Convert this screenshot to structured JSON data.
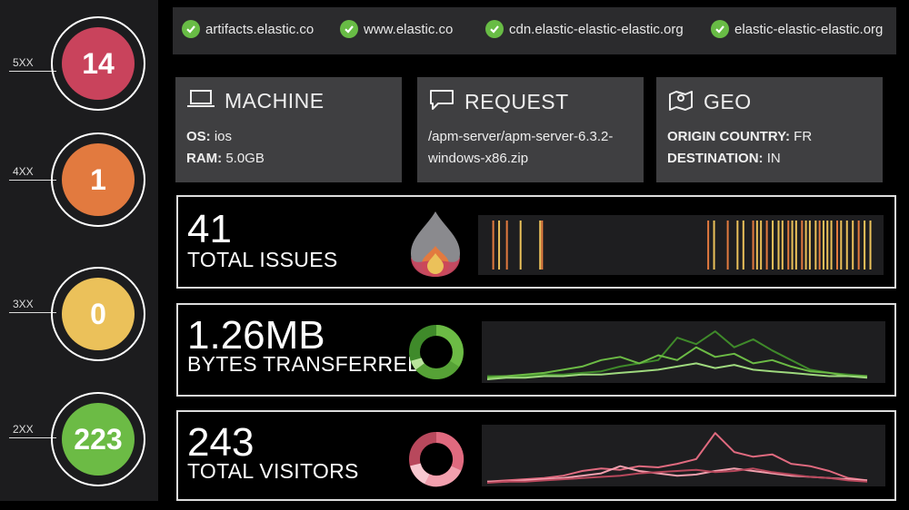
{
  "status_codes": [
    {
      "label": "5XX",
      "count": "14",
      "color": "#c9435c"
    },
    {
      "label": "4XX",
      "count": "1",
      "color": "#e27a3f"
    },
    {
      "label": "3XX",
      "count": "0",
      "color": "#ebc15a"
    },
    {
      "label": "2XX",
      "count": "223",
      "color": "#6cbb45"
    }
  ],
  "hosts": [
    {
      "name": "artifacts.elastic.co",
      "icon": "check-circle-icon"
    },
    {
      "name": "www.elastic.co",
      "icon": "check-circle-icon"
    },
    {
      "name": "cdn.elastic-elastic-elastic.org",
      "icon": "check-circle-icon"
    },
    {
      "name": "elastic-elastic-elastic.org",
      "icon": "check-circle-icon"
    }
  ],
  "machine": {
    "title": "MACHINE",
    "icon": "laptop-icon",
    "os_key": "OS:",
    "os_value": "ios",
    "ram_key": "RAM:",
    "ram_value": "5.0GB"
  },
  "request": {
    "title": "REQUEST",
    "icon": "speech-bubble-icon",
    "line1": "/apm-server/apm-server-6.3.2-",
    "line2": "windows-x86.zip"
  },
  "geo": {
    "title": "GEO",
    "icon": "map-pin-icon",
    "origin_key": "ORIGIN COUNTRY:",
    "origin_value": "FR",
    "destination_key": "DESTINATION:",
    "destination_value": "IN"
  },
  "issues": {
    "value": "41",
    "label": "TOTAL ISSUES",
    "icon": "flame-icon"
  },
  "bytes": {
    "value": "1.26MB",
    "label": "BYTES TRANSFERRED",
    "icon": "donut-icon",
    "color": "#6cbb45"
  },
  "visitors": {
    "value": "243",
    "label": "TOTAL VISITORS",
    "icon": "donut-icon",
    "color": "#e06a7f"
  },
  "chart_data": [
    {
      "type": "bar",
      "name": "issues-events",
      "events": [
        {
          "t": 0.02,
          "c": "#e27a3f"
        },
        {
          "t": 0.035,
          "c": "#ebc15a"
        },
        {
          "t": 0.055,
          "c": "#e27a3f"
        },
        {
          "t": 0.09,
          "c": "#ebc15a"
        },
        {
          "t": 0.14,
          "c": "#ebc15a"
        },
        {
          "t": 0.145,
          "c": "#e27a3f"
        },
        {
          "t": 0.57,
          "c": "#e27a3f"
        },
        {
          "t": 0.585,
          "c": "#ebc15a"
        },
        {
          "t": 0.62,
          "c": "#e27a3f"
        },
        {
          "t": 0.645,
          "c": "#ebc15a"
        },
        {
          "t": 0.66,
          "c": "#ebc15a"
        },
        {
          "t": 0.685,
          "c": "#e27a3f"
        },
        {
          "t": 0.695,
          "c": "#ebc15a"
        },
        {
          "t": 0.705,
          "c": "#ebc15a"
        },
        {
          "t": 0.72,
          "c": "#e27a3f"
        },
        {
          "t": 0.735,
          "c": "#ebc15a"
        },
        {
          "t": 0.75,
          "c": "#ebc15a"
        },
        {
          "t": 0.76,
          "c": "#ebc15a"
        },
        {
          "t": 0.775,
          "c": "#e27a3f"
        },
        {
          "t": 0.785,
          "c": "#ebc15a"
        },
        {
          "t": 0.795,
          "c": "#ebc15a"
        },
        {
          "t": 0.81,
          "c": "#e27a3f"
        },
        {
          "t": 0.82,
          "c": "#ebc15a"
        },
        {
          "t": 0.83,
          "c": "#ebc15a"
        },
        {
          "t": 0.845,
          "c": "#ebc15a"
        },
        {
          "t": 0.855,
          "c": "#e27a3f"
        },
        {
          "t": 0.865,
          "c": "#ebc15a"
        },
        {
          "t": 0.875,
          "c": "#ebc15a"
        },
        {
          "t": 0.885,
          "c": "#ebc15a"
        },
        {
          "t": 0.9,
          "c": "#e27a3f"
        },
        {
          "t": 0.91,
          "c": "#ebc15a"
        },
        {
          "t": 0.925,
          "c": "#ebc15a"
        },
        {
          "t": 0.94,
          "c": "#ebc15a"
        },
        {
          "t": 0.955,
          "c": "#e27a3f"
        },
        {
          "t": 0.97,
          "c": "#ebc15a"
        },
        {
          "t": 0.985,
          "c": "#ebc15a"
        }
      ]
    },
    {
      "type": "line",
      "name": "bytes-transferred",
      "x": [
        0,
        1,
        2,
        3,
        4,
        5,
        6,
        7,
        8,
        9,
        10,
        11,
        12,
        13,
        14,
        15,
        16,
        17,
        18,
        19,
        20
      ],
      "series": [
        {
          "values": [
            2,
            2,
            2,
            3,
            3,
            4,
            5,
            8,
            10,
            12,
            26,
            22,
            30,
            20,
            25,
            18,
            12,
            6,
            4,
            3,
            2
          ],
          "color": "#3f8a2a"
        },
        {
          "values": [
            1,
            2,
            3,
            4,
            6,
            8,
            12,
            14,
            10,
            15,
            12,
            20,
            14,
            16,
            10,
            12,
            8,
            5,
            4,
            2,
            2
          ],
          "color": "#6cbb45"
        },
        {
          "values": [
            0,
            1,
            1,
            2,
            2,
            3,
            3,
            4,
            5,
            6,
            8,
            10,
            7,
            9,
            6,
            5,
            4,
            3,
            2,
            2,
            1
          ],
          "color": "#9fd97e"
        }
      ],
      "ylim": [
        0,
        34
      ]
    },
    {
      "type": "line",
      "name": "total-visitors",
      "x": [
        0,
        1,
        2,
        3,
        4,
        5,
        6,
        7,
        8,
        9,
        10,
        11,
        12,
        13,
        14,
        15,
        16,
        17,
        18,
        19,
        20
      ],
      "series": [
        {
          "values": [
            1,
            2,
            3,
            4,
            6,
            10,
            12,
            11,
            14,
            13,
            16,
            20,
            42,
            26,
            22,
            24,
            16,
            14,
            10,
            4,
            2
          ],
          "color": "#e06a7f"
        },
        {
          "values": [
            1,
            1,
            2,
            3,
            4,
            6,
            8,
            14,
            10,
            8,
            6,
            7,
            10,
            12,
            10,
            8,
            6,
            5,
            4,
            3,
            2
          ],
          "color": "#f2a0ae"
        },
        {
          "values": [
            0,
            1,
            1,
            2,
            3,
            4,
            5,
            6,
            8,
            9,
            10,
            11,
            9,
            10,
            12,
            9,
            7,
            5,
            4,
            2,
            1
          ],
          "color": "#b8485c"
        }
      ],
      "ylim": [
        0,
        46
      ]
    }
  ]
}
